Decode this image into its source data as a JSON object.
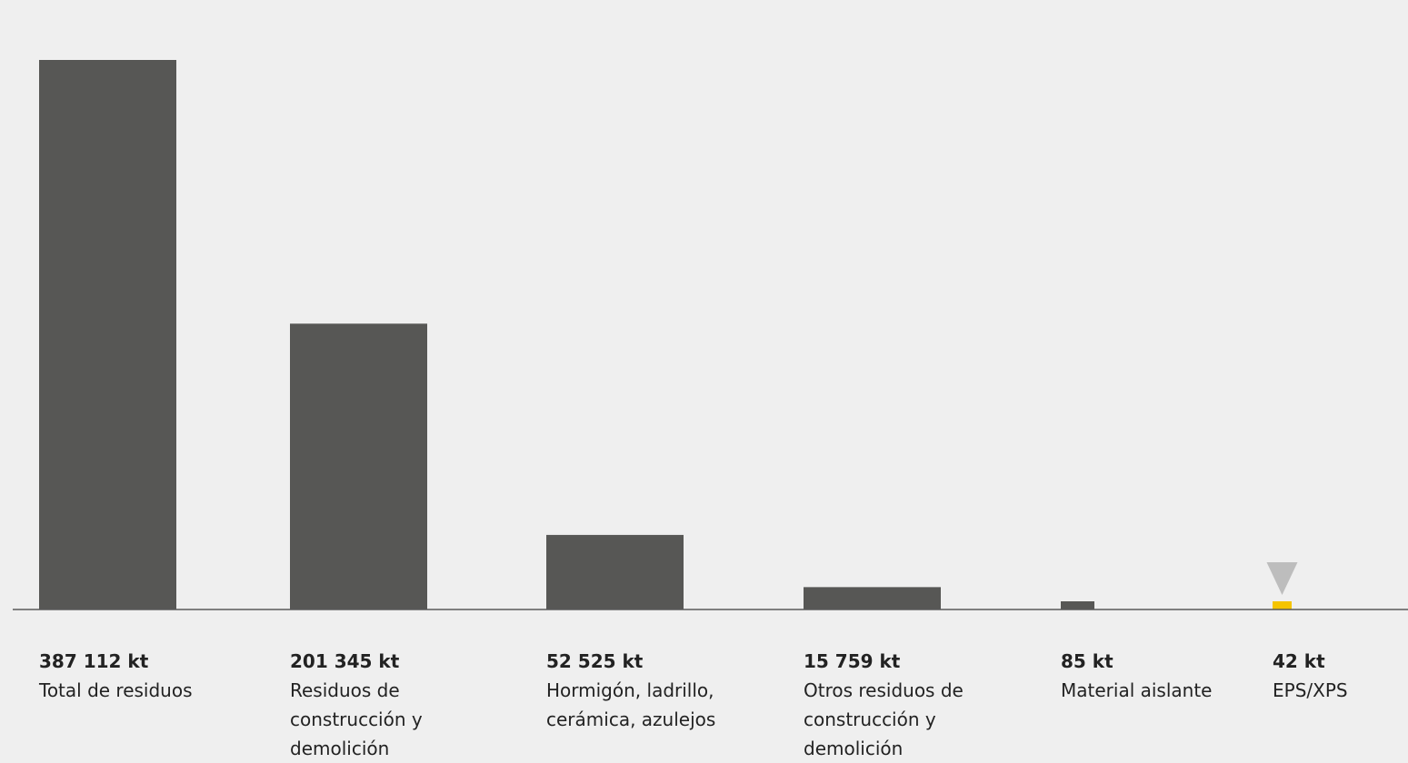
{
  "chart_data": {
    "type": "bar",
    "title": "",
    "xlabel": "",
    "ylabel": "",
    "unit": "kt",
    "ylim": [
      0,
      387112
    ],
    "grid": false,
    "legend": "none",
    "categories": [
      "Total de residuos",
      "Residuos de construcción y demolición",
      "Hormigón, ladrillo, cerámica, azulejos",
      "Otros residuos de construcción y demolición",
      "Material aislante",
      "EPS/XPS"
    ],
    "values": [
      387112,
      201345,
      52525,
      15759,
      85,
      42
    ],
    "value_labels": [
      "387 112 kt",
      "201 345 kt",
      "52 525 kt",
      "15 759 kt",
      "85 kt",
      "42 kt"
    ],
    "colors": {
      "bar": "#575755",
      "highlight": "#f5c400",
      "marker": "#bdbdbd",
      "axis": "#5a5a5a",
      "background": "#efefef"
    },
    "highlight_index": 5,
    "marker_index": 5,
    "marker_icon": "down-triangle-icon"
  }
}
